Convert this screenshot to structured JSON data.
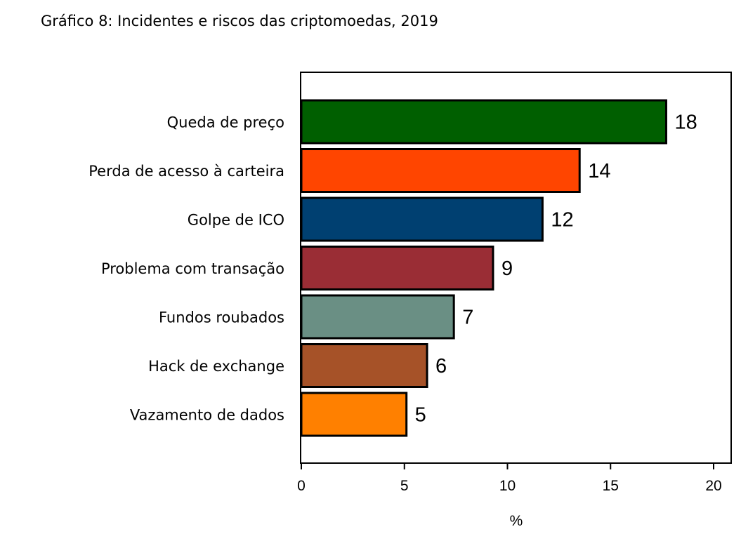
{
  "chart_data": {
    "type": "bar",
    "orientation": "horizontal",
    "title": "Gráfico 8: Incidentes e riscos das criptomoedas, 2019",
    "xlabel": "%",
    "ylabel": "",
    "xlim": [
      0,
      20
    ],
    "xticks": [
      0,
      5,
      10,
      15,
      20
    ],
    "grid": false,
    "categories": [
      "Queda de preço",
      "Perda de acesso à carteira",
      "Golpe de ICO",
      "Problema com transação",
      "Fundos roubados",
      "Hack de exchange",
      "Vazamento de dados"
    ],
    "values": [
      17.7,
      13.5,
      11.7,
      9.3,
      7.4,
      6.1,
      5.1
    ],
    "data_labels": [
      "18",
      "14",
      "12",
      "9",
      "7",
      "6",
      "5"
    ],
    "colors": [
      "#005f00",
      "#ff4500",
      "#004071",
      "#9a2d35",
      "#6a8f84",
      "#a65228",
      "#ff8000"
    ]
  }
}
